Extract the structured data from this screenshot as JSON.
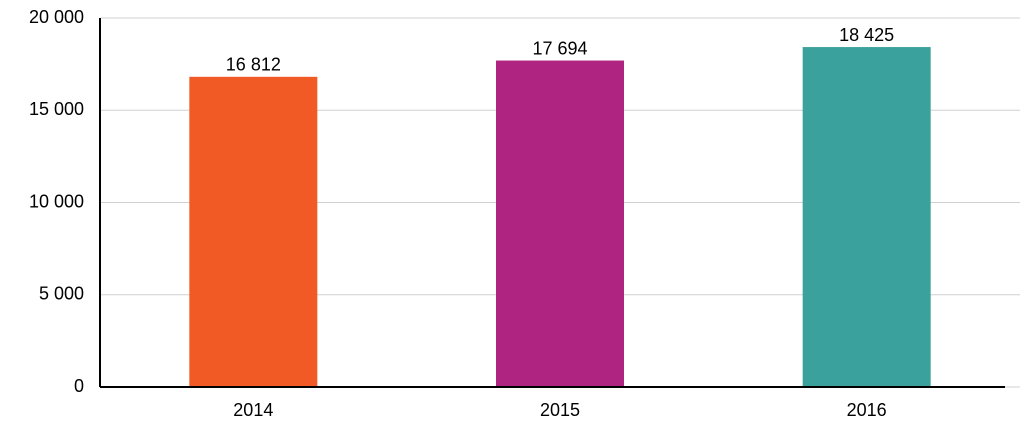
{
  "chart_data": {
    "type": "bar",
    "categories": [
      "2014",
      "2015",
      "2016"
    ],
    "values": [
      16812,
      17694,
      18425
    ],
    "value_labels": [
      "16 812",
      "17 694",
      "18 425"
    ],
    "colors": [
      "#f15a24",
      "#ae2480",
      "#3aa19c"
    ],
    "ylim": [
      0,
      20000
    ],
    "yticks": [
      0,
      {
        "value": 5000,
        "label": "5 000"
      },
      {
        "value": 10000,
        "label": "10 000"
      },
      {
        "value": 15000,
        "label": "15 000"
      },
      {
        "value": 20000,
        "label": "20 000"
      }
    ],
    "grid": true
  }
}
